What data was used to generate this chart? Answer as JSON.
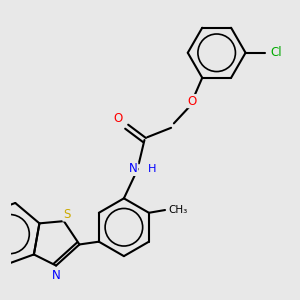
{
  "bg_color": "#e8e8e8",
  "bond_color": "#000000",
  "bond_width": 1.5,
  "atom_colors": {
    "O": "#ff0000",
    "N": "#0000ff",
    "S": "#ccaa00",
    "Cl": "#00aa00",
    "C": "#000000",
    "H": "#0000ff"
  },
  "font_size": 8.5,
  "figsize": [
    3.0,
    3.0
  ],
  "dpi": 100,
  "xlim": [
    -2.8,
    2.2
  ],
  "ylim": [
    -2.5,
    2.8
  ]
}
